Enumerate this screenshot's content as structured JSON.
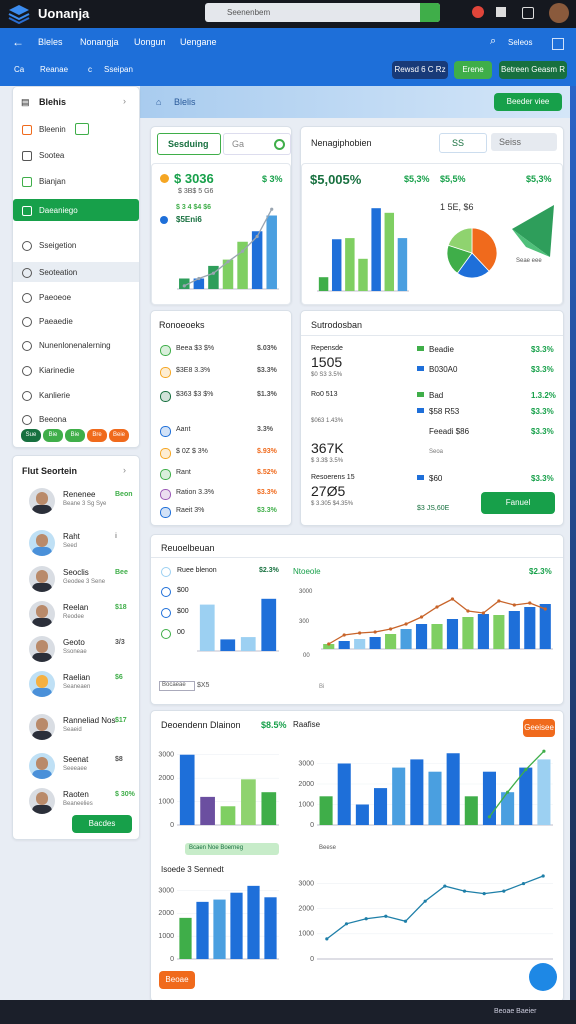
{
  "topbar": {
    "app_name": "Uonanja",
    "search": "Seenenbem"
  },
  "nav": {
    "items": [
      "Bleles",
      "Nonangja",
      "Uongun",
      "Uengane"
    ],
    "right": "Seleos",
    "sub": [
      "Ca",
      "Reanae",
      "c",
      "Sseipan"
    ],
    "buttons": [
      "Rewsd 6 C Rz",
      "Erene",
      "Betreen Geasm R"
    ]
  },
  "sidebar": {
    "title": "Blehis",
    "items": [
      "Bleenin",
      "Sootea",
      "Bianjan",
      "Daeaniego",
      "Sseigetion",
      "Seoteation",
      "Paeoeoe",
      "Paeaedie",
      "Nunenlonenalerning",
      "Kiarinedie",
      "Kanlierie",
      "Beeona"
    ],
    "tags": [
      "Sue",
      "Bie",
      "Bie",
      "Bre",
      "Beie"
    ]
  },
  "contacts": {
    "title": "Flut Seortein",
    "people": [
      {
        "name": "Renenee",
        "sub": "Beane 3 Sg Sye",
        "value": "Beon"
      },
      {
        "name": "Raht",
        "sub": "Seed",
        "value": "i"
      },
      {
        "name": "Seoclis",
        "sub": "Geodee 3 Sene",
        "value": "Bee"
      },
      {
        "name": "Reelan",
        "sub": "Reodee",
        "value": "$18"
      },
      {
        "name": "Geoto",
        "sub": "Ssoneae",
        "value": "3/3"
      },
      {
        "name": "Raelian",
        "sub": "Seaneaen",
        "value": "$6"
      },
      {
        "name": "Ranneliad Nos",
        "sub": "Seaeid",
        "value": "$17"
      },
      {
        "name": "Seenat",
        "sub": "Seeeaee",
        "value": "$8"
      },
      {
        "name": "Raoten",
        "sub": "Beaneelies",
        "value": "$ 30%"
      }
    ],
    "button": "Bacdes"
  },
  "main": {
    "header": "Blelis",
    "header_button": "Beeder viee",
    "card_a": {
      "tab": "Sesduing",
      "search": "Ga",
      "big": "$ 3036",
      "pct": "$ 3%",
      "sub": "$ 3B$ 5 G6",
      "badge": "$ 3 4 $4 $6",
      "badge2": "$5Eni6"
    },
    "card_b": {
      "title": "Nenagiphobien",
      "input": "SS",
      "select": "Seiss",
      "big": "$5,005%",
      "pct": "$5,3%",
      "pct2": "$5,5%",
      "pct3": "$5,3%",
      "note": "1 5E, $6",
      "legend": "Seae eee"
    },
    "card_c": {
      "title": "Ronoeoeks",
      "rows": [
        {
          "name": "Beea $3 $%",
          "value": "$.03%"
        },
        {
          "name": "$3E8 3.3%",
          "value": "$3.3%"
        },
        {
          "name": "$363 $3 $%",
          "value": "$1.3%"
        },
        {
          "name": "Aant",
          "value": "3.3%"
        },
        {
          "name": "$ 0Z $ 3%",
          "value": "$.93%"
        },
        {
          "name": "Rant",
          "value": "$.52%"
        },
        {
          "name": "Ration 3.3%",
          "value": "$3.3%"
        },
        {
          "name": "Raeit 3%",
          "value": "$3.3%"
        }
      ]
    },
    "card_d": {
      "title": "Sutrodosban",
      "stats": [
        {
          "label": "Repensde",
          "value": "1505",
          "sub": "$0 S3 3.5%"
        },
        {
          "label": "Ro0 513",
          "value": "",
          "sub": "$063 1.43%"
        },
        {
          "label": "",
          "value": "367K",
          "sub": "$ 3.3$ 3.5%"
        },
        {
          "label": "Resoerens 15",
          "value": "27Ø5",
          "sub": "$ 3.305 $4.35%"
        }
      ],
      "items": [
        {
          "name": "Beadie",
          "value": "$3.3%"
        },
        {
          "name": "B030A0",
          "value": "$3.3%"
        },
        {
          "name": "Bad",
          "value": "1.3.2%"
        },
        {
          "name": "$58 R53",
          "value": "$3.3%"
        },
        {
          "name": "Feeadi $86",
          "value": "$3.3%"
        },
        {
          "name": "$60",
          "value": "$3.3%"
        }
      ],
      "item_sub": "Seoa",
      "foot": "$3 JS,60E",
      "button": "Fanuel"
    },
    "card_e": {
      "title": "Reuoelbeuan",
      "list": [
        "Ruee blenon",
        "$00",
        "$00",
        "00"
      ],
      "pct": "$2.3%",
      "legend": "Ntoeole",
      "pct2": "$2.3%",
      "axis_labels": [
        "3000",
        "300",
        "00"
      ],
      "foot": "Bocaeae",
      "foot2": "$X5",
      "foot3": "Bi"
    },
    "card_f": {
      "title": "Deoendenn Dlainon",
      "pct": "$8.5%",
      "title2": "Raafise",
      "buttons": [
        "",
        "Geeisee"
      ],
      "legend": "Bcaen Noe Boerneg",
      "legend2": "Beese",
      "title3": "Isoede 3 Sennedt",
      "bottom_buttons": [
        "Beoae",
        ""
      ],
      "footer": "Beoae Baeier"
    }
  },
  "charts": [
    {
      "type": "bar_line",
      "values": [
        1,
        1,
        2.2,
        2.8,
        4.5,
        5.5,
        7
      ],
      "colors": [
        "#2e9e5b",
        "#1e6fd9",
        "#2e9e5b",
        "#7fcf62",
        "#7fcf62",
        "#1e6fd9",
        "#4a9fe0"
      ],
      "line": [
        0.3,
        1,
        1.5,
        2.6,
        3.6,
        5,
        7.6
      ],
      "line_color": "#9aa5b1",
      "ylim": [
        0,
        8
      ]
    },
    {
      "type": "bar",
      "values": [
        1.2,
        4.5,
        4.6,
        2.8,
        7.2,
        6.8,
        4.6
      ],
      "colors": [
        "#3fae49",
        "#1e6fd9",
        "#7fcf62",
        "#7fcf62",
        "#1e6fd9",
        "#7fcf62",
        "#4a9fe0"
      ],
      "ylim": [
        0,
        8
      ]
    },
    {
      "type": "pie",
      "values": [
        38,
        22,
        20,
        20
      ],
      "colors": [
        "#f06a1c",
        "#1e6fd9",
        "#3fae49",
        "#8fd36f"
      ]
    },
    {
      "type": "bar",
      "values": [
        4,
        1,
        1.2,
        4.5
      ],
      "colors": [
        "#9cd0f2",
        "#1e6fd9",
        "#9cd0f2",
        "#1e6fd9"
      ],
      "ylim": [
        0,
        5
      ]
    },
    {
      "type": "bar_line",
      "values": [
        0.5,
        0.8,
        1,
        1.2,
        1.5,
        2,
        2.5,
        2.5,
        3,
        3.2,
        3.5,
        3.4,
        3.8,
        4.2,
        4.5
      ],
      "colors": [
        "#7fcf62",
        "#1e6fd9",
        "#9cd0f2",
        "#1e6fd9",
        "#7fcf62",
        "#4a9fe0",
        "#1e6fd9",
        "#7fcf62",
        "#1e6fd9",
        "#7fcf62",
        "#1e6fd9",
        "#7fcf62",
        "#1e6fd9",
        "#1e6fd9",
        "#1e6fd9"
      ],
      "line": [
        0.5,
        1.4,
        1.6,
        1.7,
        2,
        2.5,
        3.2,
        4.2,
        5,
        3.8,
        3.6,
        4.8,
        4.4,
        4.6,
        4
      ],
      "line_color": "#c8642a",
      "ylim": [
        0,
        6
      ]
    },
    {
      "type": "bar",
      "values": [
        3000,
        1200,
        800,
        1950,
        1400
      ],
      "colors": [
        "#1e6fd9",
        "#6b4fa0",
        "#7fcf62",
        "#8fd36f",
        "#3fae49"
      ],
      "ylim": [
        0,
        3500
      ],
      "yticks": [
        0,
        1000,
        2000,
        3000
      ]
    },
    {
      "type": "bar_line",
      "values": [
        1400,
        3000,
        1000,
        1800,
        2800,
        3200,
        2600,
        3500,
        1400,
        2600,
        1600,
        2800,
        3200
      ],
      "colors": [
        "#3fae49",
        "#1e6fd9",
        "#1e6fd9",
        "#1e6fd9",
        "#4a9fe0",
        "#1e6fd9",
        "#4a9fe0",
        "#1e6fd9",
        "#3fae49",
        "#1e6fd9",
        "#4a9fe0",
        "#1e6fd9",
        "#9cd0f2"
      ],
      "line": [
        null,
        null,
        null,
        null,
        null,
        null,
        null,
        null,
        null,
        400,
        1600,
        2700,
        3600
      ],
      "line_color": "#3fae49",
      "ylim": [
        0,
        4000
      ],
      "yticks": [
        0,
        1000,
        2000,
        3000
      ]
    },
    {
      "type": "bar",
      "values": [
        1800,
        2500,
        2600,
        2900,
        3200,
        2700
      ],
      "colors": [
        "#3fae49",
        "#1e6fd9",
        "#4a9fe0",
        "#1e6fd9",
        "#1e6fd9",
        "#1e6fd9"
      ],
      "ylim": [
        0,
        3500
      ],
      "yticks": [
        0,
        1000,
        2000,
        3000
      ]
    },
    {
      "type": "line",
      "values": [
        800,
        1400,
        1600,
        1700,
        1500,
        2300,
        2900,
        2700,
        2600,
        2700,
        3000,
        3300
      ],
      "line_color": "#1e7fa8",
      "ylim": [
        0,
        3500
      ],
      "yticks": [
        0,
        1000,
        2000,
        3000
      ]
    }
  ]
}
